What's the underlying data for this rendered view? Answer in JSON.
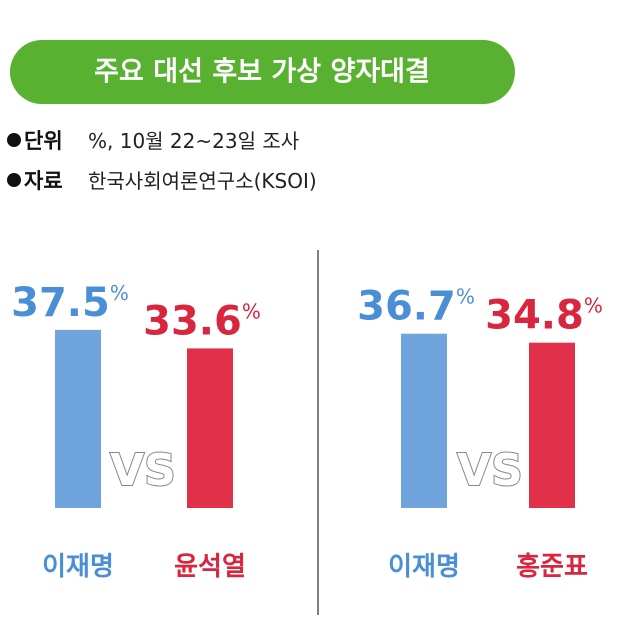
{
  "title": "주요 대선 후보 가상 양자대결",
  "notes": [
    {
      "label": "단위",
      "text": "%, 10월 22~23일 조사"
    },
    {
      "label": "자료",
      "text": "한국사회여론연구소(KSOI)"
    }
  ],
  "chart_data": [
    {
      "type": "bar",
      "categories": [
        "이재명",
        "윤석열"
      ],
      "values": [
        37.5,
        33.6
      ],
      "colors": [
        "#6fa5dc",
        "#e0304a"
      ],
      "label_colors": [
        "#4a8fd6",
        "#d9263f"
      ],
      "unit": "%",
      "vs_label": "VS"
    },
    {
      "type": "bar",
      "categories": [
        "이재명",
        "홍준표"
      ],
      "values": [
        36.7,
        34.8
      ],
      "colors": [
        "#6fa5dc",
        "#e0304a"
      ],
      "label_colors": [
        "#4a8fd6",
        "#d9263f"
      ],
      "unit": "%",
      "vs_label": "VS"
    }
  ]
}
